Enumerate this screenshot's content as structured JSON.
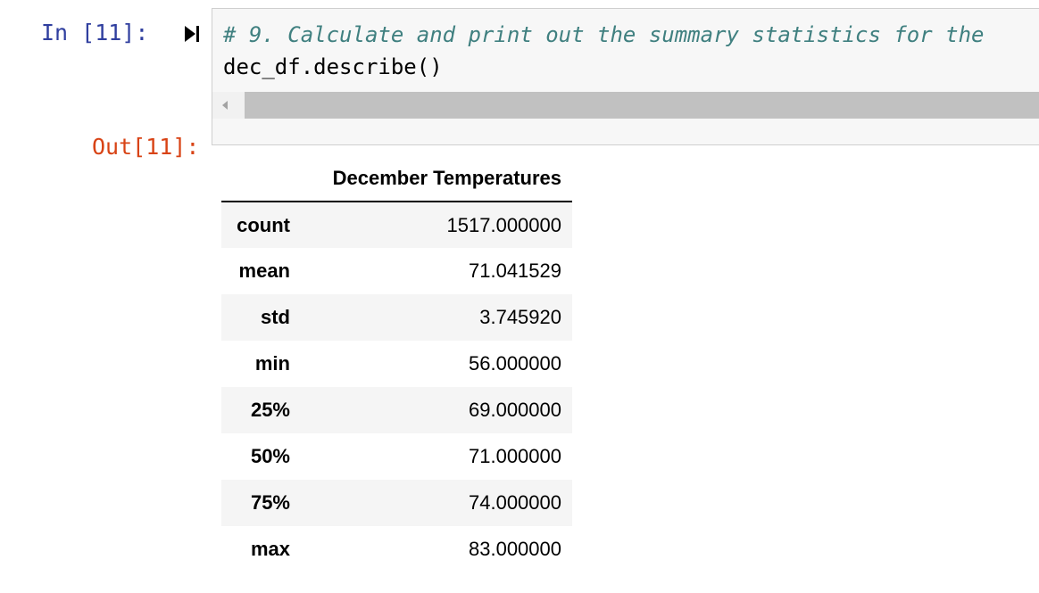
{
  "cell": {
    "input_prompt": "In [11]:",
    "output_prompt": "Out[11]:",
    "run_icon": "run-cell-icon",
    "code_lines": [
      "# 9. Calculate and print out the summary statistics for the",
      "dec_df.describe()"
    ]
  },
  "dataframe": {
    "column_header": "December Temperatures",
    "rows": [
      {
        "index": "count",
        "value": "1517.000000"
      },
      {
        "index": "mean",
        "value": "71.041529"
      },
      {
        "index": "std",
        "value": "3.745920"
      },
      {
        "index": "min",
        "value": "56.000000"
      },
      {
        "index": "25%",
        "value": "69.000000"
      },
      {
        "index": "50%",
        "value": "71.000000"
      },
      {
        "index": "75%",
        "value": "74.000000"
      },
      {
        "index": "max",
        "value": "83.000000"
      }
    ]
  },
  "colors": {
    "input_prompt": "#303f9f",
    "output_prompt": "#d84315",
    "comment": "#408080",
    "input_background": "#f7f7f7",
    "table_stripe": "#f5f5f5"
  }
}
